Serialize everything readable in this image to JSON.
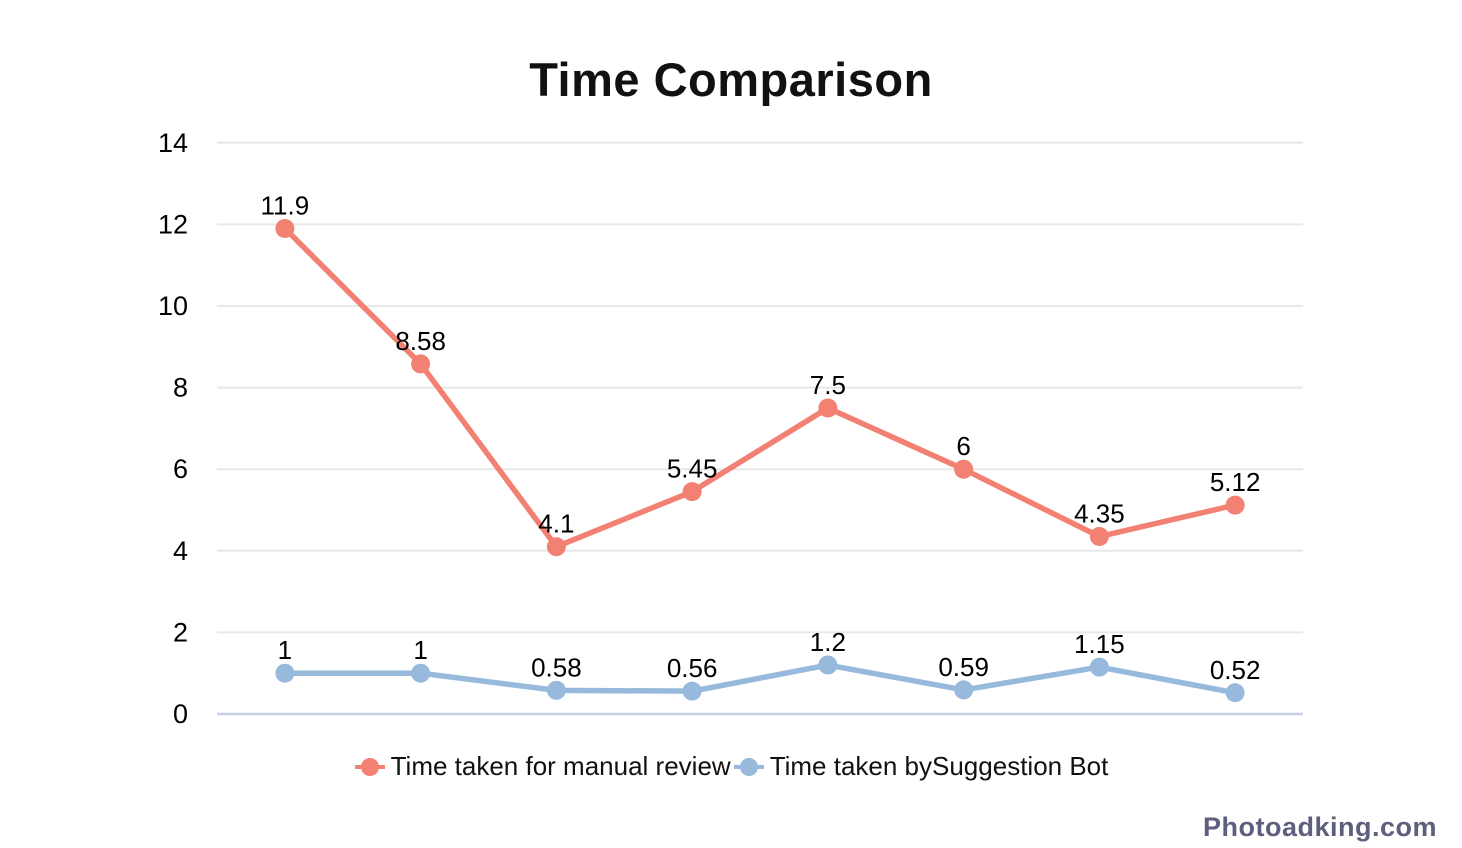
{
  "page": {
    "background": "#ffffff"
  },
  "chart": {
    "title": "Time Comparison",
    "watermark": "Photoadking.com"
  },
  "chart_data": {
    "type": "line",
    "title": "Time Comparison",
    "num_points": 8,
    "x_tick_labels": [],
    "series": [
      {
        "name": "Time taken for manual review",
        "color": "#F28073",
        "marker": "circle",
        "values": [
          11.9,
          8.58,
          4.1,
          5.45,
          7.5,
          6,
          4.35,
          5.12
        ]
      },
      {
        "name": "Time taken bySuggestion Bot",
        "color": "#96B9DC",
        "marker": "circle",
        "values": [
          1,
          1,
          0.58,
          0.56,
          1.2,
          0.59,
          1.15,
          0.52
        ]
      }
    ],
    "ylim": [
      0,
      14
    ],
    "yticks": [
      0,
      2,
      4,
      6,
      8,
      10,
      12,
      14
    ],
    "grid": true,
    "data_labels": true,
    "legend_position": "bottom",
    "colors": {
      "gridline": "#E8E8E8",
      "baseline": "#C9CFE3",
      "label_text": "#000000",
      "watermark": "#5E5E7D"
    }
  }
}
